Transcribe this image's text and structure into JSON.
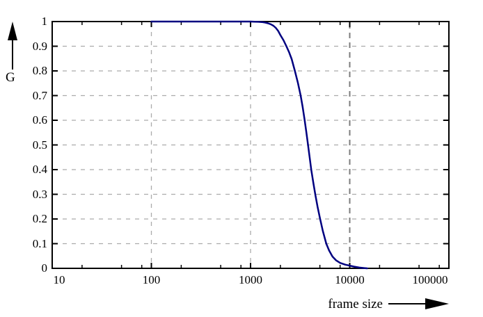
{
  "colors": {
    "curve": "#000080",
    "grid": "#ababab",
    "grid_emphasis": "#7d7d7d",
    "axis": "#000000",
    "background": "#ffffff"
  },
  "axes": {
    "y": {
      "label": "G",
      "tick_labels": [
        "1",
        "0.9",
        "0.8",
        "0.7",
        "0.6",
        "0.5",
        "0.4",
        "0.3",
        "0.2",
        "0.1",
        "0"
      ],
      "tick_values": [
        1,
        0.9,
        0.8,
        0.7,
        0.6,
        0.5,
        0.4,
        0.3,
        0.2,
        0.1,
        0
      ]
    },
    "x": {
      "label": "frame size",
      "tick_labels": [
        "10",
        "100",
        "1000",
        "10000",
        "100000"
      ],
      "tick_values": [
        10,
        100,
        1000,
        10000,
        100000
      ],
      "minor_tick_multipliers": [
        2,
        5,
        8
      ],
      "scale": "log"
    }
  },
  "chart_data": {
    "type": "line",
    "title": "",
    "xlabel": "frame size",
    "ylabel": "G",
    "x_scale": "log",
    "xlim": [
      10,
      100000
    ],
    "ylim": [
      0,
      1
    ],
    "grid": "dashed",
    "grid_x": [
      100,
      1000,
      10000
    ],
    "grid_x_emphasized": 10000,
    "grid_y": [
      0.1,
      0.2,
      0.3,
      0.4,
      0.5,
      0.6,
      0.7,
      0.8,
      0.9
    ],
    "legend": "none",
    "series": [
      {
        "name": "G",
        "color": "#000080",
        "points": [
          [
            100,
            1.0
          ],
          [
            300,
            1.0
          ],
          [
            600,
            1.0
          ],
          [
            900,
            1.0
          ],
          [
            1000,
            1.0
          ],
          [
            1100,
            0.9995
          ],
          [
            1200,
            0.999
          ],
          [
            1300,
            0.998
          ],
          [
            1400,
            0.996
          ],
          [
            1500,
            0.993
          ],
          [
            1600,
            0.989
          ],
          [
            1700,
            0.983
          ],
          [
            1800,
            0.974
          ],
          [
            1900,
            0.962
          ],
          [
            2000,
            0.945
          ],
          [
            2150,
            0.924
          ],
          [
            2300,
            0.9
          ],
          [
            2450,
            0.875
          ],
          [
            2600,
            0.848
          ],
          [
            2800,
            0.8
          ],
          [
            3000,
            0.752
          ],
          [
            3200,
            0.7
          ],
          [
            3350,
            0.655
          ],
          [
            3500,
            0.605
          ],
          [
            3650,
            0.553
          ],
          [
            3800,
            0.5
          ],
          [
            3950,
            0.448
          ],
          [
            4100,
            0.398
          ],
          [
            4300,
            0.345
          ],
          [
            4500,
            0.298
          ],
          [
            4750,
            0.248
          ],
          [
            5000,
            0.205
          ],
          [
            5350,
            0.152
          ],
          [
            5800,
            0.1
          ],
          [
            6200,
            0.072
          ],
          [
            6700,
            0.048
          ],
          [
            7300,
            0.032
          ],
          [
            8000,
            0.022
          ],
          [
            9000,
            0.015
          ],
          [
            10000,
            0.011
          ],
          [
            11000,
            0.007
          ],
          [
            12500,
            0.003
          ],
          [
            14000,
            0.001
          ],
          [
            15000,
            0.0
          ]
        ]
      }
    ]
  }
}
